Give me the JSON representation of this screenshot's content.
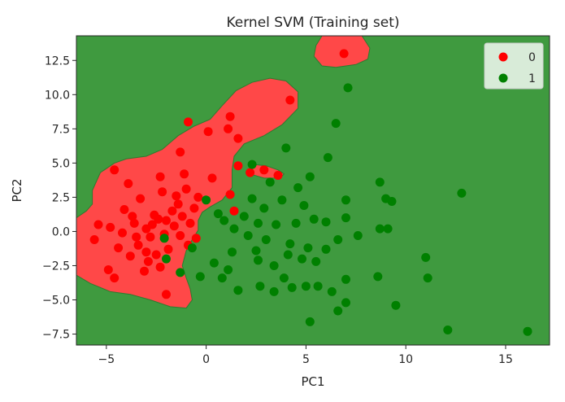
{
  "chart_data": {
    "type": "scatter",
    "title": "Kernel SVM (Training set)",
    "xlabel": "PC1",
    "ylabel": "PC2",
    "xlim": [
      -6.5,
      17.2
    ],
    "ylim": [
      -8.3,
      14.3
    ],
    "xticks": [
      -5,
      0,
      5,
      10,
      15
    ],
    "yticks": [
      -7.5,
      -5.0,
      -2.5,
      0.0,
      2.5,
      5.0,
      7.5,
      10.0,
      12.5
    ],
    "xtick_labels": [
      "−5",
      "0",
      "5",
      "10",
      "15"
    ],
    "ytick_labels": [
      "−7.5",
      "−5.0",
      "−2.5",
      "0.0",
      "2.5",
      "5.0",
      "7.5",
      "10.0",
      "12.5"
    ],
    "grid": false,
    "legend": {
      "placement": "top-right",
      "entries": [
        "0",
        "1"
      ]
    },
    "colors": {
      "class_0": "#ff0000",
      "class_1": "#008000",
      "region_0": "#ff4848",
      "region_1": "#3f9a3f"
    },
    "decision_regions": [
      {
        "class": "0",
        "polygon": [
          [
            -6.5,
            1.0
          ],
          [
            -6.0,
            1.5
          ],
          [
            -5.7,
            2.0
          ],
          [
            -5.7,
            3.0
          ],
          [
            -5.3,
            4.3
          ],
          [
            -4.6,
            5.0
          ],
          [
            -4.0,
            5.3
          ],
          [
            -3.0,
            5.5
          ],
          [
            -2.2,
            6.0
          ],
          [
            -1.4,
            7.0
          ],
          [
            -0.6,
            7.7
          ],
          [
            0.2,
            8.2
          ],
          [
            0.8,
            9.2
          ],
          [
            1.5,
            10.3
          ],
          [
            2.3,
            10.9
          ],
          [
            3.2,
            11.2
          ],
          [
            4.0,
            11.0
          ],
          [
            4.6,
            10.2
          ],
          [
            4.6,
            9.0
          ],
          [
            3.8,
            7.8
          ],
          [
            2.9,
            7.0
          ],
          [
            1.9,
            6.4
          ],
          [
            1.4,
            5.5
          ],
          [
            1.3,
            4.5
          ],
          [
            1.3,
            3.2
          ],
          [
            0.8,
            2.3
          ],
          [
            0.2,
            1.8
          ],
          [
            -0.2,
            1.4
          ],
          [
            -0.4,
            0.8
          ],
          [
            -0.4,
            0.1
          ],
          [
            -0.7,
            -0.6
          ],
          [
            -1.0,
            -1.4
          ],
          [
            -1.2,
            -2.5
          ],
          [
            -1.0,
            -3.4
          ],
          [
            -0.8,
            -4.2
          ],
          [
            -0.7,
            -5.0
          ],
          [
            -1.0,
            -5.6
          ],
          [
            -1.8,
            -5.5
          ],
          [
            -2.8,
            -5.0
          ],
          [
            -3.8,
            -4.6
          ],
          [
            -4.8,
            -4.4
          ],
          [
            -5.8,
            -3.8
          ],
          [
            -6.5,
            -3.2
          ]
        ]
      },
      {
        "class": "0",
        "polygon": [
          [
            5.4,
            12.8
          ],
          [
            5.5,
            13.6
          ],
          [
            5.8,
            14.3
          ],
          [
            7.8,
            14.3
          ],
          [
            8.2,
            13.4
          ],
          [
            8.1,
            12.6
          ],
          [
            7.5,
            12.2
          ],
          [
            6.5,
            12.0
          ],
          [
            5.8,
            12.1
          ]
        ]
      },
      {
        "class": "0",
        "polygon": [
          [
            2.2,
            4.2
          ],
          [
            2.4,
            4.9
          ],
          [
            3.0,
            4.8
          ],
          [
            3.6,
            4.5
          ],
          [
            3.9,
            4.2
          ],
          [
            3.7,
            3.9
          ],
          [
            2.9,
            3.9
          ]
        ]
      }
    ],
    "series": [
      {
        "name": "0",
        "color": "#ff0000",
        "points": [
          [
            6.9,
            13.0
          ],
          [
            4.2,
            9.6
          ],
          [
            1.2,
            8.4
          ],
          [
            -0.9,
            8.0
          ],
          [
            1.1,
            7.5
          ],
          [
            0.1,
            7.3
          ],
          [
            1.6,
            6.8
          ],
          [
            -1.3,
            5.8
          ],
          [
            -4.6,
            4.5
          ],
          [
            -3.9,
            3.5
          ],
          [
            -2.3,
            4.0
          ],
          [
            -1.1,
            4.2
          ],
          [
            0.3,
            3.9
          ],
          [
            1.6,
            4.8
          ],
          [
            2.9,
            4.5
          ],
          [
            3.6,
            4.1
          ],
          [
            2.2,
            4.3
          ],
          [
            -5.4,
            0.5
          ],
          [
            -5.6,
            -0.6
          ],
          [
            -4.9,
            -2.8
          ],
          [
            -4.6,
            -3.4
          ],
          [
            -2.0,
            -4.6
          ],
          [
            -3.3,
            2.4
          ],
          [
            -3.0,
            0.2
          ],
          [
            -2.8,
            -0.4
          ],
          [
            -3.6,
            0.6
          ],
          [
            -2.6,
            1.2
          ],
          [
            -2.1,
            -0.2
          ],
          [
            -1.6,
            0.4
          ],
          [
            -1.2,
            1.1
          ],
          [
            -0.8,
            0.6
          ],
          [
            -0.5,
            -0.5
          ],
          [
            -1.9,
            -1.3
          ],
          [
            -3.4,
            -1.0
          ],
          [
            -4.2,
            -0.1
          ],
          [
            -2.4,
            0.9
          ],
          [
            -1.4,
            2.0
          ],
          [
            -0.6,
            1.7
          ],
          [
            -3.8,
            -1.8
          ],
          [
            -2.9,
            -2.2
          ],
          [
            1.4,
            1.5
          ],
          [
            1.2,
            2.7
          ],
          [
            -4.1,
            1.6
          ],
          [
            -2.2,
            2.9
          ],
          [
            -1.0,
            3.1
          ],
          [
            -3.1,
            -2.9
          ],
          [
            -2.5,
            -1.7
          ],
          [
            -1.7,
            1.5
          ],
          [
            -2.7,
            0.5
          ],
          [
            -3.5,
            -0.4
          ],
          [
            -4.4,
            -1.2
          ],
          [
            -1.3,
            -0.3
          ],
          [
            -0.9,
            -1.0
          ],
          [
            -2.0,
            0.8
          ],
          [
            -3.0,
            -1.5
          ],
          [
            -4.8,
            0.3
          ],
          [
            -1.5,
            2.6
          ],
          [
            -0.4,
            2.5
          ],
          [
            -2.3,
            -2.6
          ],
          [
            -3.7,
            1.1
          ]
        ]
      },
      {
        "name": "1",
        "color": "#008000",
        "points": [
          [
            7.1,
            10.5
          ],
          [
            6.5,
            7.9
          ],
          [
            4.0,
            6.1
          ],
          [
            6.1,
            5.4
          ],
          [
            2.3,
            4.9
          ],
          [
            8.7,
            3.6
          ],
          [
            9.0,
            2.4
          ],
          [
            12.8,
            2.8
          ],
          [
            7.0,
            2.3
          ],
          [
            7.0,
            1.0
          ],
          [
            8.7,
            0.2
          ],
          [
            9.1,
            0.2
          ],
          [
            11.0,
            -1.9
          ],
          [
            11.1,
            -3.4
          ],
          [
            8.6,
            -3.3
          ],
          [
            7.0,
            -3.5
          ],
          [
            7.0,
            -5.2
          ],
          [
            9.5,
            -5.4
          ],
          [
            6.6,
            -5.8
          ],
          [
            5.2,
            -6.6
          ],
          [
            12.1,
            -7.2
          ],
          [
            16.1,
            -7.3
          ],
          [
            0.0,
            2.3
          ],
          [
            -2.1,
            -0.5
          ],
          [
            -2.0,
            -2.0
          ],
          [
            -1.3,
            -3.0
          ],
          [
            -0.3,
            -3.3
          ],
          [
            0.8,
            -3.4
          ],
          [
            1.6,
            -4.3
          ],
          [
            2.7,
            -4.0
          ],
          [
            3.4,
            -4.4
          ],
          [
            4.3,
            -4.1
          ],
          [
            5.0,
            -4.0
          ],
          [
            5.6,
            -4.0
          ],
          [
            2.6,
            -2.1
          ],
          [
            3.4,
            -2.5
          ],
          [
            4.1,
            -1.7
          ],
          [
            4.8,
            -2.0
          ],
          [
            5.5,
            -2.2
          ],
          [
            6.0,
            -1.3
          ],
          [
            6.6,
            -0.6
          ],
          [
            3.0,
            -0.6
          ],
          [
            2.1,
            -0.3
          ],
          [
            1.4,
            0.2
          ],
          [
            0.9,
            0.8
          ],
          [
            3.5,
            0.5
          ],
          [
            4.5,
            0.6
          ],
          [
            5.4,
            0.9
          ],
          [
            6.0,
            0.7
          ],
          [
            2.9,
            1.7
          ],
          [
            3.8,
            2.3
          ],
          [
            4.6,
            3.2
          ],
          [
            5.2,
            4.0
          ],
          [
            0.6,
            1.3
          ],
          [
            1.3,
            -1.5
          ],
          [
            0.4,
            -2.3
          ],
          [
            -0.7,
            -1.2
          ],
          [
            2.3,
            2.4
          ],
          [
            3.2,
            3.6
          ],
          [
            1.9,
            1.1
          ],
          [
            4.2,
            -0.9
          ],
          [
            5.1,
            -1.2
          ],
          [
            2.5,
            -1.4
          ],
          [
            3.9,
            -3.4
          ],
          [
            1.1,
            -2.8
          ],
          [
            6.3,
            -4.4
          ],
          [
            7.6,
            -0.3
          ],
          [
            9.3,
            2.2
          ],
          [
            2.6,
            0.6
          ],
          [
            4.9,
            1.9
          ]
        ]
      }
    ]
  }
}
